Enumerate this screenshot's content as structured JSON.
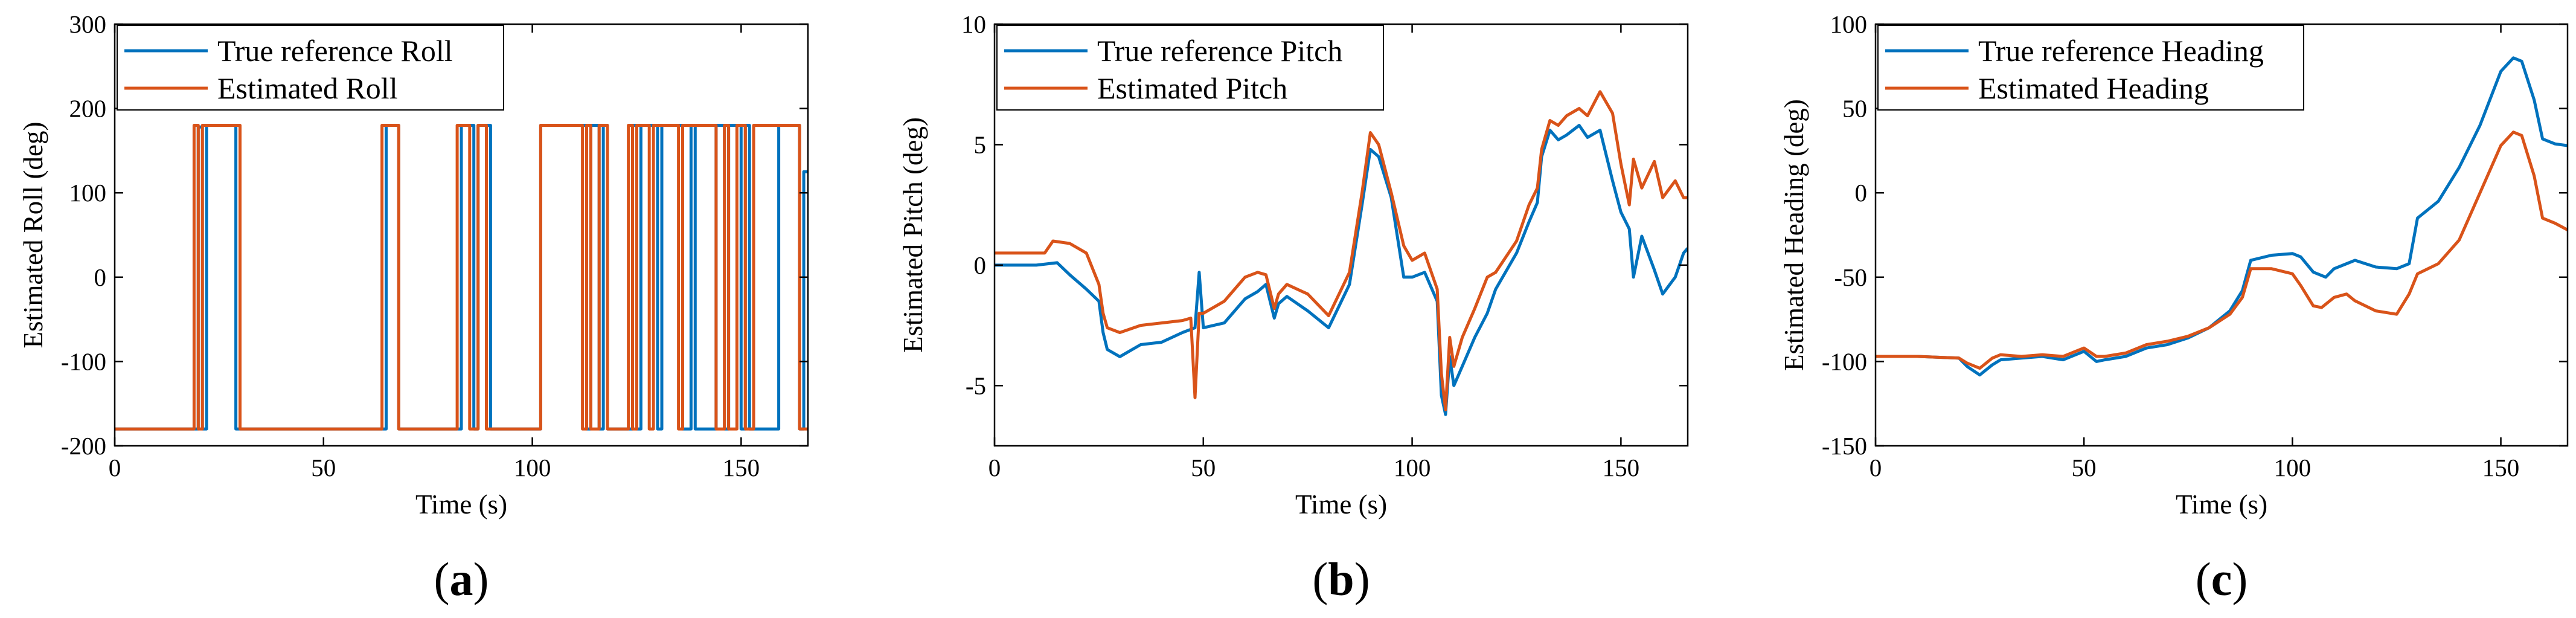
{
  "colors": {
    "reference": "#0072BD",
    "estimated": "#D95319",
    "axis": "#000000",
    "background": "#ffffff"
  },
  "chart_data": [
    {
      "type": "line",
      "panel_label": "a",
      "xlabel": "Time (s)",
      "ylabel": "Estimated Roll (deg)",
      "xlim": [
        0,
        166
      ],
      "ylim": [
        -200,
        300
      ],
      "xticks": [
        0,
        50,
        100,
        150
      ],
      "yticks": [
        -200,
        -100,
        0,
        100,
        200,
        300
      ],
      "legend_position": "top-left",
      "series": [
        {
          "name": "True reference Roll",
          "color": "#0072BD",
          "x": [
            0,
            20,
            20,
            21,
            21,
            22,
            22,
            29,
            29,
            30,
            30,
            65,
            65,
            68,
            68,
            83,
            83,
            86,
            86,
            87,
            87,
            90,
            90,
            91,
            91,
            102,
            102,
            113,
            113,
            114,
            114,
            116,
            116,
            117,
            117,
            118,
            118,
            124,
            124,
            125,
            125,
            126,
            126,
            130,
            130,
            131,
            131,
            136,
            136,
            138,
            138,
            139,
            139,
            144,
            144,
            146,
            146,
            147,
            147,
            150,
            150,
            151,
            151,
            152,
            152,
            159,
            159,
            164,
            164,
            165,
            165,
            166
          ],
          "y": [
            -180,
            -180,
            178,
            178,
            -180,
            -180,
            180,
            180,
            -180,
            -180,
            -180,
            -180,
            180,
            180,
            -180,
            -180,
            180,
            180,
            -180,
            -180,
            180,
            180,
            -180,
            -180,
            -180,
            -180,
            180,
            180,
            -180,
            -180,
            180,
            180,
            -180,
            -180,
            180,
            180,
            -180,
            -180,
            180,
            180,
            -180,
            -180,
            180,
            180,
            -180,
            -180,
            180,
            180,
            -180,
            -180,
            180,
            180,
            -180,
            -180,
            180,
            180,
            -180,
            -180,
            180,
            180,
            -180,
            -180,
            180,
            180,
            -180,
            -180,
            180,
            180,
            -180,
            -180,
            125,
            125
          ]
        },
        {
          "name": "Estimated Roll",
          "color": "#D95319",
          "x": [
            0,
            19,
            19,
            20,
            20,
            21,
            21,
            22,
            22,
            30,
            30,
            64,
            64,
            65,
            65,
            68,
            68,
            82,
            82,
            85,
            85,
            87,
            87,
            89,
            89,
            90,
            90,
            102,
            102,
            112,
            112,
            113,
            113,
            114,
            114,
            116,
            116,
            118,
            118,
            123,
            123,
            124,
            124,
            125,
            125,
            128,
            128,
            129,
            129,
            135,
            135,
            136,
            136,
            137,
            137,
            144,
            144,
            146,
            146,
            147,
            147,
            149,
            149,
            151,
            151,
            153,
            153,
            164,
            164,
            165,
            165,
            166
          ],
          "y": [
            -180,
            -180,
            180,
            180,
            -180,
            -180,
            180,
            180,
            180,
            180,
            -180,
            -180,
            180,
            180,
            180,
            180,
            -180,
            -180,
            180,
            180,
            -180,
            -180,
            180,
            180,
            -180,
            -180,
            -180,
            -180,
            180,
            180,
            -180,
            -180,
            180,
            180,
            -180,
            -180,
            180,
            180,
            -180,
            -180,
            180,
            180,
            -180,
            -180,
            180,
            180,
            -180,
            -180,
            180,
            180,
            -180,
            -180,
            180,
            180,
            180,
            180,
            -180,
            -180,
            180,
            180,
            -180,
            -180,
            180,
            180,
            -180,
            -180,
            180,
            180,
            -180,
            -180,
            -180,
            -180
          ]
        }
      ]
    },
    {
      "type": "line",
      "panel_label": "b",
      "xlabel": "Time (s)",
      "ylabel": "Estimated Pitch (deg)",
      "xlim": [
        0,
        166
      ],
      "ylim": [
        -7.5,
        10
      ],
      "xticks": [
        0,
        50,
        100,
        150
      ],
      "yticks": [
        -5,
        0,
        5,
        10
      ],
      "legend_position": "top-left",
      "series": [
        {
          "name": "True reference Pitch",
          "color": "#0072BD",
          "x": [
            0,
            10,
            15,
            18,
            22,
            25,
            26,
            27,
            30,
            35,
            40,
            45,
            48,
            49,
            50,
            55,
            60,
            63,
            65,
            67,
            68,
            70,
            75,
            80,
            85,
            88,
            90,
            92,
            95,
            98,
            100,
            103,
            106,
            107,
            108,
            109,
            110,
            112,
            115,
            118,
            120,
            125,
            128,
            130,
            131,
            133,
            135,
            137,
            140,
            142,
            145,
            148,
            150,
            152,
            153,
            155,
            158,
            160,
            163,
            165,
            166
          ],
          "y": [
            0,
            0,
            0.1,
            -0.4,
            -1,
            -1.5,
            -2.8,
            -3.5,
            -3.8,
            -3.3,
            -3.2,
            -2.8,
            -2.6,
            -0.3,
            -2.6,
            -2.4,
            -1.4,
            -1.1,
            -0.8,
            -2.2,
            -1.6,
            -1.3,
            -1.9,
            -2.6,
            -0.8,
            2.5,
            4.8,
            4.5,
            2.8,
            -0.5,
            -0.5,
            -0.3,
            -1.5,
            -5.4,
            -6.2,
            -3.8,
            -5,
            -4.2,
            -3,
            -2,
            -1,
            0.5,
            1.8,
            2.6,
            4.5,
            5.6,
            5.2,
            5.4,
            5.8,
            5.3,
            5.6,
            3.5,
            2.2,
            1.5,
            -0.5,
            1.2,
            -0.2,
            -1.2,
            -0.5,
            0.5,
            0.7
          ]
        },
        {
          "name": "Estimated Pitch",
          "color": "#D95319",
          "x": [
            0,
            12,
            14,
            18,
            22,
            25,
            26,
            27,
            30,
            35,
            40,
            45,
            47,
            48,
            49,
            50,
            55,
            60,
            63,
            65,
            67,
            68,
            70,
            75,
            80,
            85,
            88,
            90,
            92,
            95,
            98,
            100,
            103,
            106,
            107,
            108,
            109,
            110,
            112,
            115,
            118,
            120,
            125,
            128,
            130,
            131,
            133,
            135,
            137,
            140,
            142,
            145,
            148,
            150,
            152,
            153,
            155,
            158,
            160,
            163,
            165,
            166
          ],
          "y": [
            0.5,
            0.5,
            1,
            0.9,
            0.5,
            -0.8,
            -2,
            -2.6,
            -2.8,
            -2.5,
            -2.4,
            -2.3,
            -2.2,
            -5.5,
            -2,
            -2,
            -1.5,
            -0.5,
            -0.3,
            -0.4,
            -1.8,
            -1.2,
            -0.8,
            -1.2,
            -2.1,
            -0.3,
            3,
            5.5,
            5,
            3,
            0.8,
            0.2,
            0.5,
            -1,
            -4.5,
            -6,
            -3,
            -4.2,
            -3,
            -1.8,
            -0.5,
            -0.3,
            1,
            2.5,
            3.2,
            4.8,
            6,
            5.8,
            6.2,
            6.5,
            6.2,
            7.2,
            6.3,
            4.2,
            2.5,
            4.4,
            3.2,
            4.3,
            2.8,
            3.5,
            2.8,
            2.8
          ]
        }
      ]
    },
    {
      "type": "line",
      "panel_label": "c",
      "xlabel": "Time (s)",
      "ylabel": "Estimated Heading (deg)",
      "xlim": [
        0,
        166
      ],
      "ylim": [
        -150,
        100
      ],
      "xticks": [
        0,
        50,
        100,
        150
      ],
      "yticks": [
        -150,
        -100,
        -50,
        0,
        50,
        100
      ],
      "legend_position": "top-left",
      "series": [
        {
          "name": "True reference Heading",
          "color": "#0072BD",
          "x": [
            0,
            10,
            20,
            22,
            25,
            28,
            30,
            35,
            40,
            45,
            48,
            50,
            53,
            55,
            60,
            65,
            70,
            75,
            80,
            85,
            88,
            90,
            95,
            100,
            102,
            105,
            108,
            110,
            113,
            115,
            120,
            125,
            128,
            130,
            135,
            140,
            145,
            150,
            153,
            155,
            158,
            160,
            163,
            166
          ],
          "y": [
            -97,
            -97,
            -98,
            -103,
            -108,
            -102,
            -99,
            -98,
            -97,
            -99,
            -96,
            -94,
            -100,
            -99,
            -97,
            -92,
            -90,
            -86,
            -80,
            -70,
            -58,
            -40,
            -37,
            -36,
            -38,
            -47,
            -50,
            -45,
            -42,
            -40,
            -44,
            -45,
            -42,
            -15,
            -5,
            15,
            40,
            72,
            80,
            78,
            55,
            32,
            29,
            28
          ]
        },
        {
          "name": "Estimated Heading",
          "color": "#D95319",
          "x": [
            0,
            10,
            20,
            22,
            25,
            28,
            30,
            35,
            40,
            45,
            48,
            50,
            53,
            55,
            60,
            65,
            70,
            75,
            80,
            85,
            88,
            90,
            95,
            100,
            102,
            105,
            107,
            110,
            113,
            115,
            120,
            125,
            128,
            130,
            135,
            140,
            145,
            150,
            153,
            155,
            158,
            160,
            163,
            166
          ],
          "y": [
            -97,
            -97,
            -98,
            -101,
            -104,
            -98,
            -96,
            -97,
            -96,
            -97,
            -94,
            -92,
            -97,
            -97,
            -95,
            -90,
            -88,
            -85,
            -80,
            -72,
            -62,
            -45,
            -45,
            -48,
            -55,
            -67,
            -68,
            -62,
            -60,
            -64,
            -70,
            -72,
            -60,
            -48,
            -42,
            -28,
            0,
            28,
            36,
            34,
            10,
            -15,
            -18,
            -22
          ]
        }
      ]
    }
  ]
}
